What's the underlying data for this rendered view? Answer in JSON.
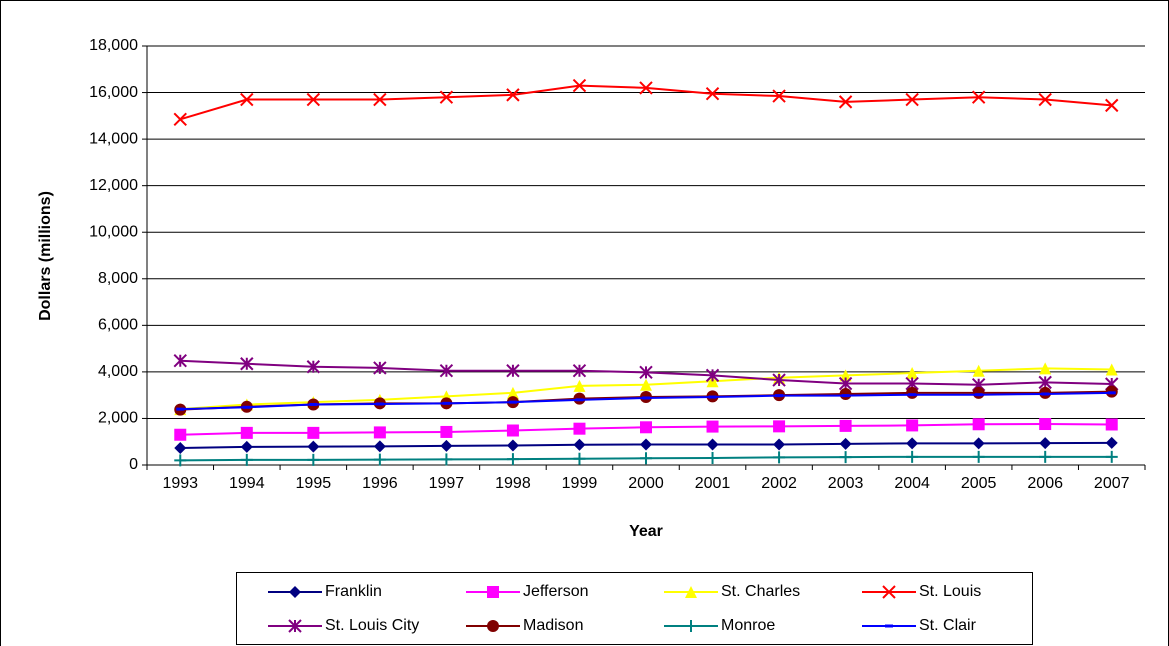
{
  "chart_data": {
    "type": "line",
    "x_label": "Year",
    "y_label": "Dollars (millions)",
    "categories": [
      "1993",
      "1994",
      "1995",
      "1996",
      "1997",
      "1998",
      "1999",
      "2000",
      "2001",
      "2002",
      "2003",
      "2004",
      "2005",
      "2006",
      "2007"
    ],
    "ylim": [
      0,
      18000
    ],
    "yticks": [
      0,
      {
        "value": 2000,
        "label": "2,000"
      },
      {
        "value": 4000,
        "label": "4,000"
      },
      {
        "value": 6000,
        "label": "6,000"
      },
      {
        "value": 8000,
        "label": "8,000"
      },
      {
        "value": 10000,
        "label": "10,000"
      },
      {
        "value": 12000,
        "label": "12,000"
      },
      {
        "value": 14000,
        "label": "14,000"
      },
      {
        "value": 16000,
        "label": "16,000"
      },
      {
        "value": 18000,
        "label": "18,000"
      }
    ],
    "grid": true,
    "legend": "bottom",
    "series": [
      {
        "name": "Franklin",
        "color": "#000080",
        "marker": "diamond",
        "values": [
          730,
          780,
          790,
          800,
          820,
          840,
          870,
          880,
          880,
          880,
          910,
          930,
          930,
          940,
          950
        ]
      },
      {
        "name": "Jefferson",
        "color": "#ff00ff",
        "marker": "square",
        "values": [
          1300,
          1380,
          1380,
          1400,
          1420,
          1480,
          1560,
          1620,
          1650,
          1660,
          1680,
          1700,
          1750,
          1760,
          1740
        ]
      },
      {
        "name": "St. Charles",
        "color": "#ffff00",
        "marker": "triangle",
        "values": [
          2400,
          2600,
          2700,
          2800,
          2950,
          3100,
          3400,
          3450,
          3600,
          3750,
          3850,
          3950,
          4050,
          4150,
          4100
        ]
      },
      {
        "name": "St. Louis",
        "color": "#ff0000",
        "marker": "x",
        "values": [
          14850,
          15700,
          15700,
          15700,
          15800,
          15900,
          16300,
          16200,
          15950,
          15850,
          15600,
          15700,
          15800,
          15700,
          15450
        ]
      },
      {
        "name": "St. Louis City",
        "color": "#800080",
        "marker": "star",
        "values": [
          4480,
          4350,
          4220,
          4170,
          4050,
          4050,
          4050,
          3980,
          3850,
          3650,
          3500,
          3500,
          3450,
          3550,
          3480
        ]
      },
      {
        "name": "Madison",
        "color": "#800000",
        "marker": "circle",
        "values": [
          2380,
          2500,
          2600,
          2650,
          2650,
          2700,
          2850,
          2920,
          2950,
          3000,
          3050,
          3100,
          3100,
          3100,
          3150
        ]
      },
      {
        "name": "Monroe",
        "color": "#008080",
        "marker": "plus",
        "values": [
          200,
          220,
          220,
          230,
          240,
          250,
          270,
          290,
          300,
          330,
          340,
          350,
          350,
          350,
          350
        ]
      },
      {
        "name": "St. Clair",
        "color": "#0000ff",
        "marker": "dash",
        "values": [
          2400,
          2480,
          2600,
          2620,
          2650,
          2700,
          2800,
          2880,
          2920,
          2980,
          2980,
          3020,
          3020,
          3050,
          3100
        ]
      }
    ]
  }
}
